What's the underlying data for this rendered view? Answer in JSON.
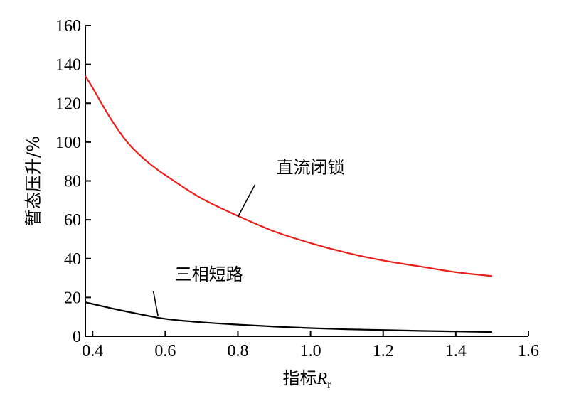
{
  "chart_data": {
    "type": "line",
    "xlabel": "指标",
    "xlabel_var": "R",
    "xlabel_sub": "r",
    "ylabel": "暂态压升/%",
    "xlim": [
      0.38,
      1.6
    ],
    "ylim": [
      0,
      160
    ],
    "x_ticks": [
      "0.4",
      "0.6",
      "0.8",
      "1.0",
      "1.2",
      "1.4",
      "1.6"
    ],
    "y_ticks": [
      "0",
      "20",
      "40",
      "60",
      "80",
      "100",
      "120",
      "140",
      "160"
    ],
    "grid": false,
    "series": [
      {
        "name": "直流闭锁",
        "color": "#e8201c",
        "x": [
          0.38,
          0.4,
          0.45,
          0.5,
          0.55,
          0.6,
          0.7,
          0.8,
          0.9,
          1.0,
          1.1,
          1.2,
          1.3,
          1.4,
          1.5
        ],
        "y": [
          134,
          128,
          112,
          99,
          90,
          83,
          71,
          62,
          54,
          48,
          43,
          39,
          36,
          33,
          31
        ]
      },
      {
        "name": "三相短路",
        "color": "#000000",
        "x": [
          0.38,
          0.45,
          0.5,
          0.6,
          0.7,
          0.8,
          0.9,
          1.0,
          1.1,
          1.2,
          1.3,
          1.4,
          1.5
        ],
        "y": [
          17.5,
          14.5,
          12.5,
          9,
          7.2,
          6,
          5,
          4.2,
          3.6,
          3.2,
          2.8,
          2.5,
          2.2
        ]
      }
    ],
    "annotations": [
      {
        "text": "直流闭锁",
        "series": 0,
        "x": 0.8,
        "y": 61.5,
        "label_x": 1.0,
        "label_y": 84
      },
      {
        "text": "三相短路",
        "series": 1,
        "x": 0.58,
        "y": 10.5,
        "label_x": 0.72,
        "label_y": 29
      }
    ]
  }
}
